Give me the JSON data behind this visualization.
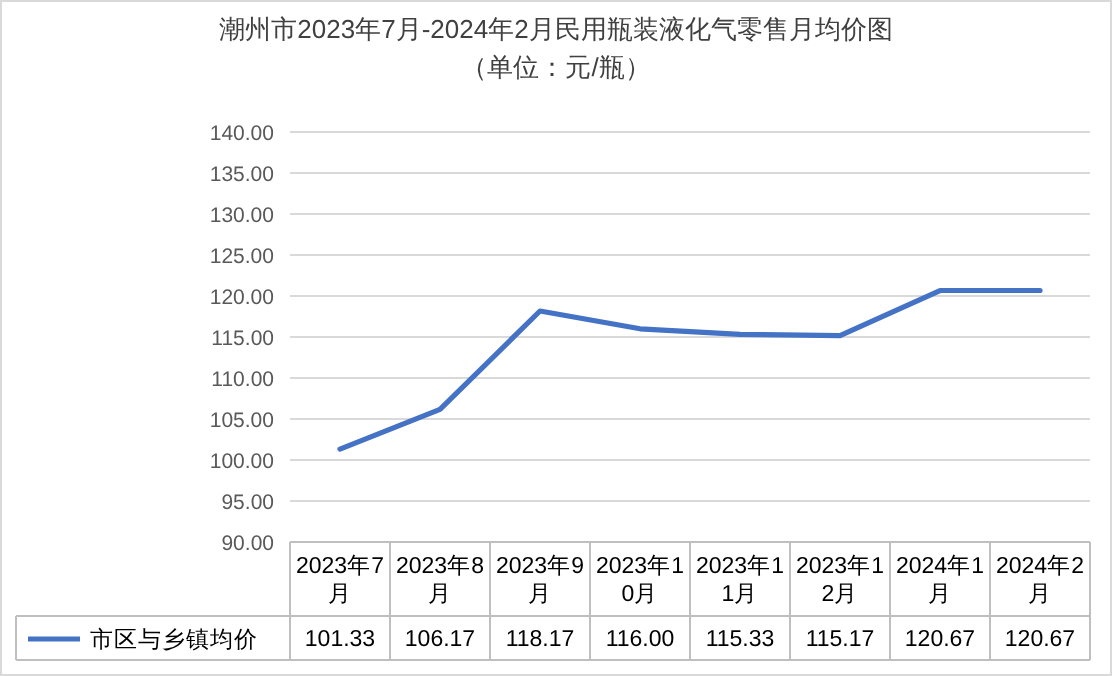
{
  "chart_data": {
    "type": "line",
    "title": "潮州市2023年7月-2024年2月民用瓶装液化气零售月均价图",
    "subtitle": "（单位：元/瓶）",
    "categories": [
      "2023年7月",
      "2023年8月",
      "2023年9月",
      "2023年10月",
      "2023年11月",
      "2023年12月",
      "2024年1月",
      "2024年2月"
    ],
    "series": [
      {
        "name": "市区与乡镇均价",
        "color": "#4472c4",
        "values": [
          101.33,
          106.17,
          118.17,
          116.0,
          115.33,
          115.17,
          120.67,
          120.67
        ],
        "value_labels": [
          "101.33",
          "106.17",
          "118.17",
          "116.00",
          "115.33",
          "115.17",
          "120.67",
          "120.67"
        ]
      }
    ],
    "ylim": [
      90,
      140
    ],
    "yticks": [
      {
        "value": 90,
        "label": "90.00"
      },
      {
        "value": 95,
        "label": "95.00"
      },
      {
        "value": 100,
        "label": "100.00"
      },
      {
        "value": 105,
        "label": "105.00"
      },
      {
        "value": 110,
        "label": "110.00"
      },
      {
        "value": 115,
        "label": "115.00"
      },
      {
        "value": 120,
        "label": "120.00"
      },
      {
        "value": 125,
        "label": "125.00"
      },
      {
        "value": 130,
        "label": "130.00"
      },
      {
        "value": 135,
        "label": "135.00"
      },
      {
        "value": 140,
        "label": "140.00"
      }
    ],
    "grid": "y",
    "legend": "bottom",
    "marker": "none",
    "line_style": "solid"
  }
}
